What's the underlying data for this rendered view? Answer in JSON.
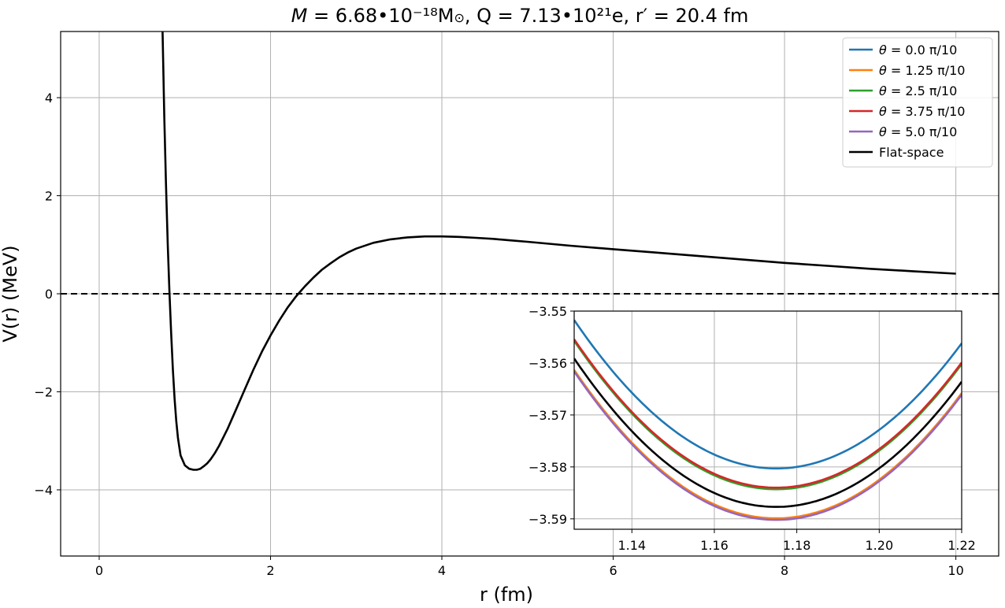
{
  "title": {
    "m_symbol": "M",
    "m_value": " =  6.68•10⁻¹⁸M",
    "m_sun": "⊙",
    "q_part": ",   Q = 7.13•10²¹e,  r′ = 20.4 fm"
  },
  "chart_data": {
    "type": "line",
    "title": "M = 6.68•10⁻¹⁸M⊙,  Q = 7.13•10²¹e,  r′ = 20.4 fm",
    "xlabel": "r (fm)",
    "ylabel": "V(r) (MeV)",
    "main": {
      "xlim": [
        -0.45,
        10.5
      ],
      "ylim": [
        -5.35,
        5.35
      ],
      "x_ticks": [
        0,
        2,
        4,
        6,
        8,
        10
      ],
      "y_ticks": [
        -4,
        -2,
        0,
        2,
        4
      ],
      "x_tick_labels": [
        "0",
        "2",
        "4",
        "6",
        "8",
        "10"
      ],
      "y_tick_labels": [
        "−4",
        "−2",
        "0",
        "2",
        "4"
      ],
      "grid": true,
      "reference_line": {
        "y": 0,
        "style": "dashed",
        "color": "#000000"
      },
      "series": [
        {
          "name": "Flat-space",
          "color": "#000000",
          "x": [
            0.74,
            0.76,
            0.78,
            0.8,
            0.82,
            0.84,
            0.86,
            0.88,
            0.9,
            0.92,
            0.95,
            1.0,
            1.05,
            1.1,
            1.14,
            1.18,
            1.22,
            1.26,
            1.3,
            1.35,
            1.4,
            1.5,
            1.6,
            1.7,
            1.8,
            1.9,
            2.0,
            2.1,
            2.2,
            2.3,
            2.4,
            2.5,
            2.6,
            2.7,
            2.8,
            2.9,
            3.0,
            3.2,
            3.4,
            3.6,
            3.8,
            4.0,
            4.2,
            4.4,
            4.6,
            4.8,
            5.0,
            5.5,
            6.0,
            6.5,
            7.0,
            7.5,
            8.0,
            8.5,
            9.0,
            9.5,
            10.0
          ],
          "y": [
            5.35,
            3.6,
            2.2,
            1.0,
            0.05,
            -0.8,
            -1.55,
            -2.15,
            -2.6,
            -2.95,
            -3.3,
            -3.5,
            -3.57,
            -3.59,
            -3.59,
            -3.57,
            -3.52,
            -3.46,
            -3.38,
            -3.25,
            -3.1,
            -2.75,
            -2.35,
            -1.95,
            -1.55,
            -1.18,
            -0.85,
            -0.55,
            -0.28,
            -0.05,
            0.15,
            0.33,
            0.49,
            0.62,
            0.74,
            0.84,
            0.92,
            1.04,
            1.11,
            1.15,
            1.17,
            1.17,
            1.16,
            1.14,
            1.12,
            1.09,
            1.06,
            0.98,
            0.91,
            0.84,
            0.77,
            0.7,
            0.63,
            0.57,
            0.51,
            0.46,
            0.41
          ]
        }
      ]
    },
    "inset": {
      "xlim": [
        1.126,
        1.22
      ],
      "ylim": [
        -3.592,
        -3.55
      ],
      "x_ticks": [
        1.14,
        1.16,
        1.18,
        1.2,
        1.22
      ],
      "y_ticks": [
        -3.55,
        -3.56,
        -3.57,
        -3.58,
        -3.59
      ],
      "x_tick_labels": [
        "1.14",
        "1.16",
        "1.18",
        "1.20",
        "1.22"
      ],
      "y_tick_labels": [
        "−3.55",
        "−3.56",
        "−3.57",
        "−3.58",
        "−3.59"
      ],
      "grid": true,
      "minimum_x": 1.175,
      "curvature": 11.9,
      "series": [
        {
          "name": "θ =  0.0 π/10",
          "color": "#1f77b4",
          "minimum_y": -3.5803
        },
        {
          "name": "θ =  1.25 π/10",
          "color": "#ff7f0e",
          "minimum_y": -3.5899
        },
        {
          "name": "θ =  2.5 π/10",
          "color": "#2ca02c",
          "minimum_y": -3.5843
        },
        {
          "name": "θ =  3.75 π/10",
          "color": "#d62728",
          "minimum_y": -3.584
        },
        {
          "name": "θ =  5.0 π/10",
          "color": "#9467bd",
          "minimum_y": -3.5902
        },
        {
          "name": "Flat-space",
          "color": "#000000",
          "minimum_y": -3.5877
        }
      ]
    },
    "legend": {
      "placement": "top-right",
      "entries": [
        {
          "symbol": "θ",
          "value": "=  0.0 π/10",
          "color": "#1f77b4"
        },
        {
          "symbol": "θ",
          "value": "=  1.25 π/10",
          "color": "#ff7f0e"
        },
        {
          "symbol": "θ",
          "value": "=  2.5 π/10",
          "color": "#2ca02c"
        },
        {
          "symbol": "θ",
          "value": "=  3.75 π/10",
          "color": "#d62728"
        },
        {
          "symbol": "θ",
          "value": "=  5.0 π/10",
          "color": "#9467bd"
        },
        {
          "symbol": "",
          "value": "Flat-space",
          "color": "#000000"
        }
      ]
    }
  }
}
